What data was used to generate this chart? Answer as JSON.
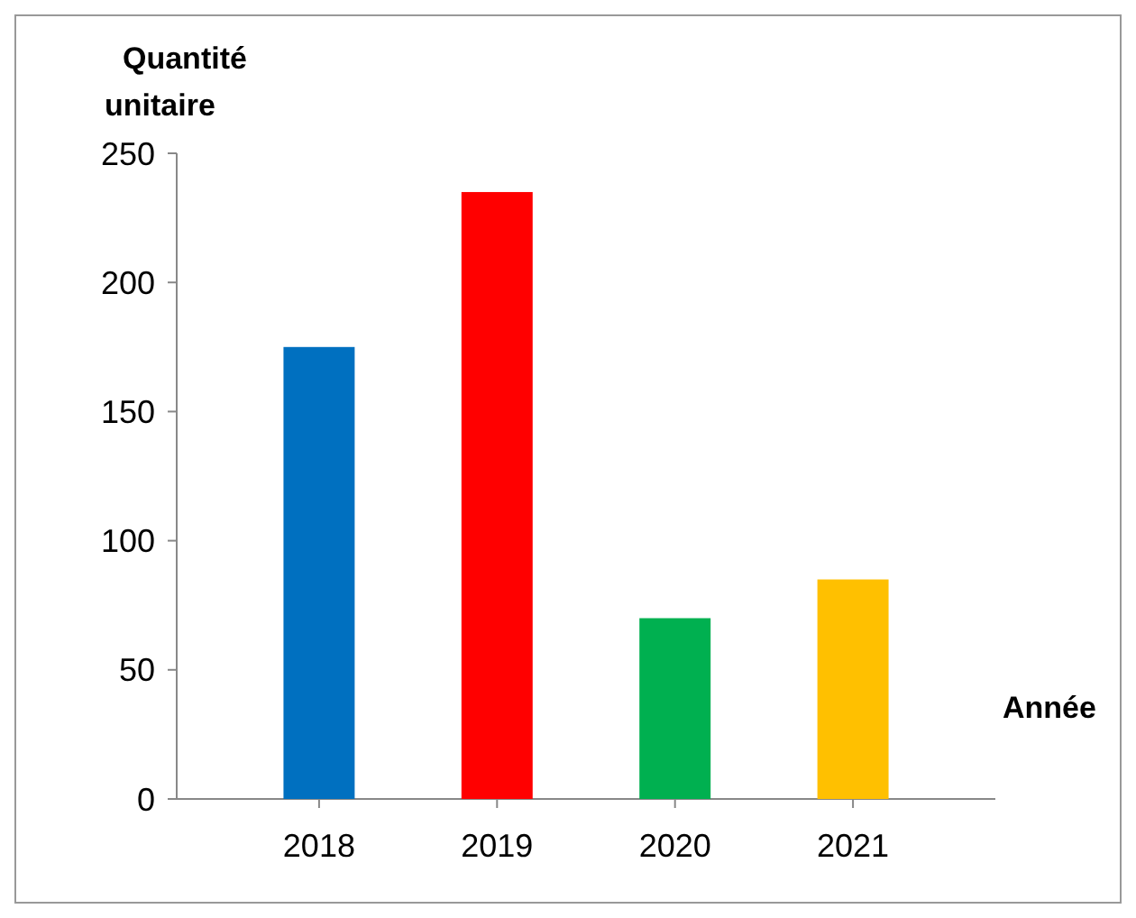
{
  "chart_data": {
    "type": "bar",
    "xlabel": "Année",
    "ylabel": "Quantité unitaire",
    "categories": [
      "2018",
      "2019",
      "2020",
      "2021"
    ],
    "values": [
      175,
      235,
      70,
      85
    ],
    "colors": [
      "#0070c0",
      "#ff0000",
      "#00b050",
      "#ffc000"
    ],
    "ylim": [
      0,
      250
    ],
    "yticks": [
      0,
      50,
      100,
      150,
      200,
      250
    ]
  }
}
